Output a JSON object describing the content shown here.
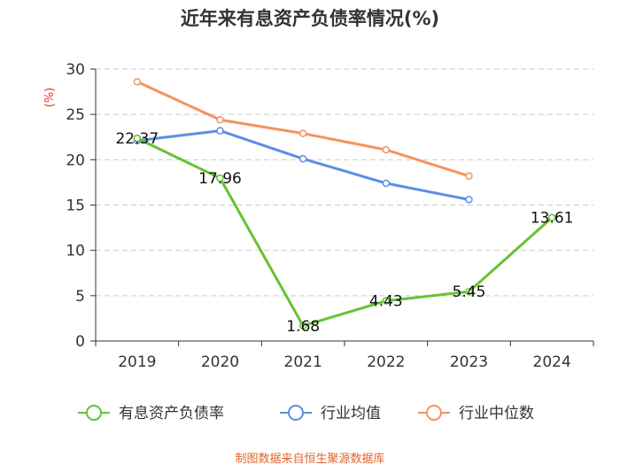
{
  "chart_data": {
    "type": "line",
    "title": "近年来有息资产负债率情况(%)",
    "ylabel": "(%)",
    "xlabel": "",
    "categories": [
      "2019",
      "2020",
      "2021",
      "2022",
      "2023",
      "2024"
    ],
    "ylim": [
      0,
      30
    ],
    "yticks": [
      0,
      5,
      10,
      15,
      20,
      25,
      30
    ],
    "grid": true,
    "legend_position": "bottom",
    "series": [
      {
        "name": "有息资产负债率",
        "color": "#66c233",
        "values": [
          22.37,
          17.96,
          1.68,
          4.43,
          5.45,
          13.61
        ],
        "labels": [
          "22.37",
          "17.96",
          "1.68",
          "4.43",
          "5.45",
          "13.61"
        ]
      },
      {
        "name": "行业均值",
        "color": "#5b8ee6",
        "values": [
          22.1,
          23.2,
          20.1,
          17.4,
          15.6,
          null
        ]
      },
      {
        "name": "行业中位数",
        "color": "#f5925e",
        "values": [
          28.6,
          24.4,
          22.9,
          21.1,
          18.2,
          null
        ]
      }
    ],
    "source": "制图数据来自恒生聚源数据库"
  }
}
